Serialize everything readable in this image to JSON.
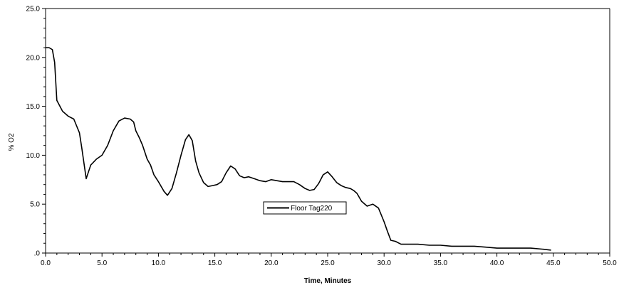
{
  "chart_data": {
    "type": "line",
    "title": "",
    "xlabel": "Time, Minutes",
    "ylabel": "% O2",
    "xlim": [
      0,
      50
    ],
    "ylim": [
      0,
      25
    ],
    "x_ticks": [
      0,
      5,
      10,
      15,
      20,
      25,
      30,
      35,
      40,
      45,
      50
    ],
    "y_ticks": [
      0,
      5,
      10,
      15,
      20,
      25
    ],
    "x_tick_labels": [
      "0.0",
      "5.0",
      "10.0",
      "15.0",
      "20.0",
      "25.0",
      "30.0",
      "35.0",
      "40.0",
      "45.0",
      "50.0"
    ],
    "y_tick_labels": [
      ".0",
      "5.0",
      "10.0",
      "15.0",
      "20.0",
      "25.0"
    ],
    "grid": false,
    "legend_position": "center",
    "line_color": "#000000",
    "series": [
      {
        "name": "Floor Tag220",
        "x": [
          0.0,
          0.3,
          0.6,
          0.8,
          1.0,
          1.5,
          2.0,
          2.5,
          3.0,
          3.2,
          3.6,
          4.0,
          4.5,
          5.0,
          5.5,
          6.0,
          6.5,
          7.0,
          7.5,
          7.8,
          8.0,
          8.3,
          8.6,
          9.0,
          9.3,
          9.6,
          10.0,
          10.5,
          10.8,
          11.2,
          11.6,
          12.0,
          12.4,
          12.7,
          13.0,
          13.3,
          13.6,
          14.0,
          14.4,
          14.8,
          15.2,
          15.6,
          16.0,
          16.4,
          16.8,
          17.2,
          17.6,
          18.0,
          18.5,
          19.0,
          19.5,
          20.0,
          20.5,
          21.0,
          21.5,
          22.0,
          22.5,
          23.0,
          23.4,
          23.8,
          24.2,
          24.6,
          25.0,
          25.4,
          25.8,
          26.2,
          26.6,
          27.0,
          27.3,
          27.6,
          28.0,
          28.5,
          29.0,
          29.5,
          30.0,
          30.3,
          30.6,
          31.0,
          31.5,
          32.0,
          33.0,
          34.0,
          35.0,
          36.0,
          37.0,
          38.0,
          39.0,
          40.0,
          41.0,
          42.0,
          43.0,
          44.0,
          44.8
        ],
        "y": [
          21.0,
          21.0,
          20.8,
          19.5,
          15.6,
          14.5,
          14.0,
          13.7,
          12.3,
          10.8,
          7.6,
          9.0,
          9.6,
          10.0,
          11.0,
          12.5,
          13.5,
          13.8,
          13.7,
          13.4,
          12.5,
          11.8,
          11.0,
          9.6,
          9.0,
          8.0,
          7.3,
          6.3,
          5.9,
          6.6,
          8.2,
          10.0,
          11.6,
          12.1,
          11.5,
          9.4,
          8.2,
          7.2,
          6.8,
          6.9,
          7.0,
          7.3,
          8.2,
          8.9,
          8.6,
          7.9,
          7.7,
          7.8,
          7.6,
          7.4,
          7.3,
          7.5,
          7.4,
          7.3,
          7.3,
          7.3,
          7.0,
          6.6,
          6.4,
          6.5,
          7.1,
          8.0,
          8.3,
          7.8,
          7.2,
          6.9,
          6.7,
          6.6,
          6.4,
          6.1,
          5.3,
          4.8,
          5.0,
          4.6,
          3.2,
          2.2,
          1.3,
          1.2,
          0.9,
          0.9,
          0.9,
          0.8,
          0.8,
          0.7,
          0.7,
          0.7,
          0.6,
          0.5,
          0.5,
          0.5,
          0.5,
          0.4,
          0.3
        ]
      }
    ]
  }
}
